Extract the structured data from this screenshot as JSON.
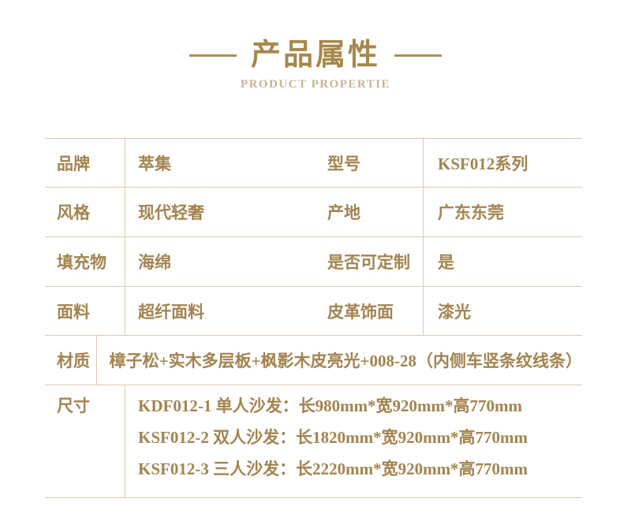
{
  "header": {
    "title": "产品属性",
    "subtitle": "PRODUCT PROPERTIE"
  },
  "colors": {
    "title_gold": "#a6884a",
    "table_text_gold": "#a3834f",
    "subtitle_tan": "#c9b394",
    "divider_line_tan": "#dcc8ab"
  },
  "table": {
    "rows": [
      {
        "label1": "品牌",
        "value1": "萃集",
        "label2": "型号",
        "value2": "KSF012系列"
      },
      {
        "label1": "风格",
        "value1": "现代轻奢",
        "label2": "产地",
        "value2": "广东东莞"
      },
      {
        "label1": "填充物",
        "value1": "海绵",
        "label2": "是否可定制",
        "value2": "是"
      },
      {
        "label1": "面料",
        "value1": "超纤面料",
        "label2": "皮革饰面",
        "value2": "漆光"
      }
    ],
    "material_row": {
      "label": "材质",
      "value": "樟子松+实木多层板+枫影木皮亮光+008-28（内侧车竖条纹线条）"
    },
    "size_row": {
      "label": "尺寸",
      "lines": [
        "KDF012-1 单人沙发：长980mm*宽920mm*高770mm",
        "KSF012-2 双人沙发：长1820mm*宽920mm*高770mm",
        "KSF012-3 三人沙发：长2220mm*宽920mm*高770mm"
      ]
    }
  }
}
